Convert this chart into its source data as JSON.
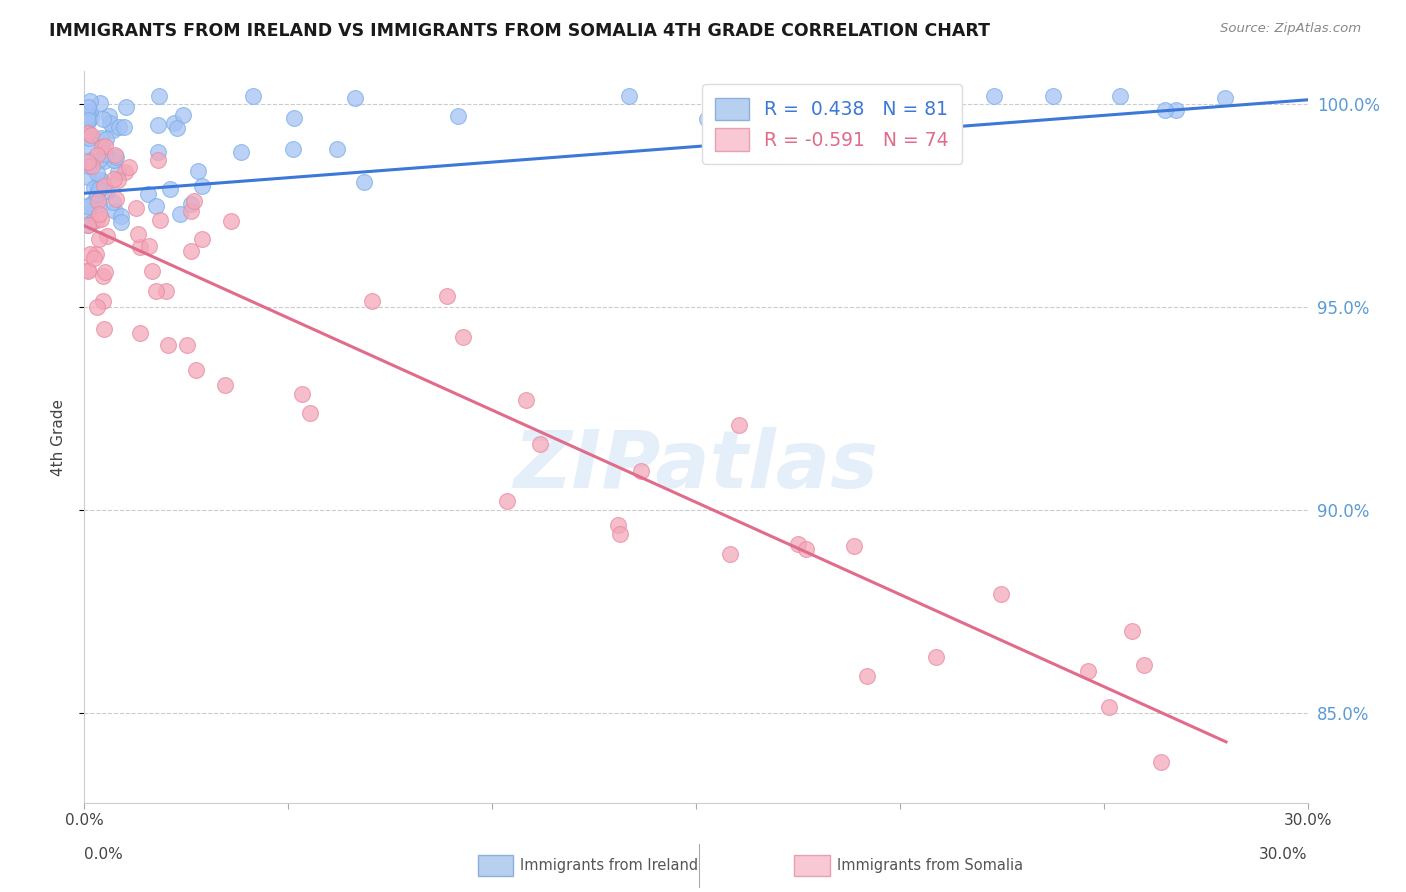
{
  "title": "IMMIGRANTS FROM IRELAND VS IMMIGRANTS FROM SOMALIA 4TH GRADE CORRELATION CHART",
  "source": "Source: ZipAtlas.com",
  "ylabel": "4th Grade",
  "ireland_color": "#a4c2f4",
  "somalia_color": "#f4a7b9",
  "ireland_line_color": "#3c78d8",
  "somalia_line_color": "#e06c8a",
  "watermark_text": "ZIPatlas",
  "xlim": [
    0.0,
    0.3
  ],
  "ylim": [
    0.828,
    1.008
  ],
  "yticks": [
    0.85,
    0.9,
    0.95,
    1.0
  ],
  "ytick_labels": [
    "85.0%",
    "90.0%",
    "95.0%",
    "100.0%"
  ],
  "legend_R_ireland": "R =  0.438",
  "legend_N_ireland": "N = 81",
  "legend_R_somalia": "R = -0.591",
  "legend_N_somalia": "N = 74",
  "ireland_line_x0": 0.0,
  "ireland_line_y0": 0.978,
  "ireland_line_x1": 0.3,
  "ireland_line_y1": 1.001,
  "somalia_line_x0": 0.0,
  "somalia_line_y0": 0.97,
  "somalia_line_x1": 0.28,
  "somalia_line_y1": 0.843
}
